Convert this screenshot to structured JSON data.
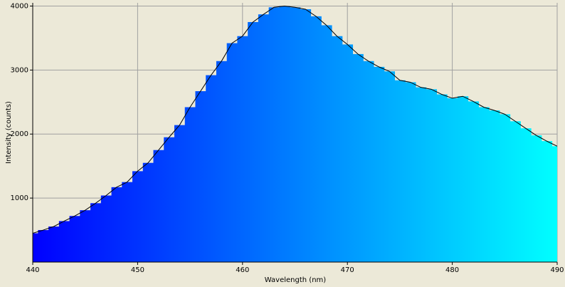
{
  "chart_data": {
    "type": "spectrum",
    "x_label": "Wavelength (nm)",
    "y_label": "Intensity (counts)",
    "x": [
      440,
      441,
      442,
      443,
      444,
      445,
      446,
      447,
      448,
      449,
      450,
      451,
      452,
      453,
      454,
      455,
      456,
      457,
      458,
      459,
      460,
      461,
      462,
      463,
      464,
      465,
      466,
      467,
      468,
      469,
      470,
      471,
      472,
      473,
      474,
      475,
      476,
      477,
      478,
      479,
      480,
      481,
      482,
      483,
      484,
      485,
      486,
      487,
      488,
      489,
      490
    ],
    "values": [
      450,
      500,
      555,
      640,
      720,
      810,
      920,
      1040,
      1170,
      1250,
      1420,
      1550,
      1750,
      1950,
      2140,
      2420,
      2670,
      2920,
      3140,
      3420,
      3530,
      3750,
      3870,
      3980,
      4000,
      3980,
      3950,
      3840,
      3700,
      3530,
      3400,
      3250,
      3140,
      3050,
      2980,
      2840,
      2810,
      2730,
      2700,
      2620,
      2560,
      2590,
      2510,
      2420,
      2370,
      2310,
      2200,
      2090,
      1980,
      1890,
      1810
    ],
    "xlim": [
      440,
      490
    ],
    "ylim": [
      0,
      4050
    ],
    "xticks": [
      440,
      450,
      460,
      470,
      480,
      490
    ],
    "yticks": [
      1000,
      2000,
      3000,
      4000
    ],
    "grid": true,
    "gradient": [
      "#0000ff",
      "#00ffff"
    ],
    "line_color": "#000000"
  }
}
